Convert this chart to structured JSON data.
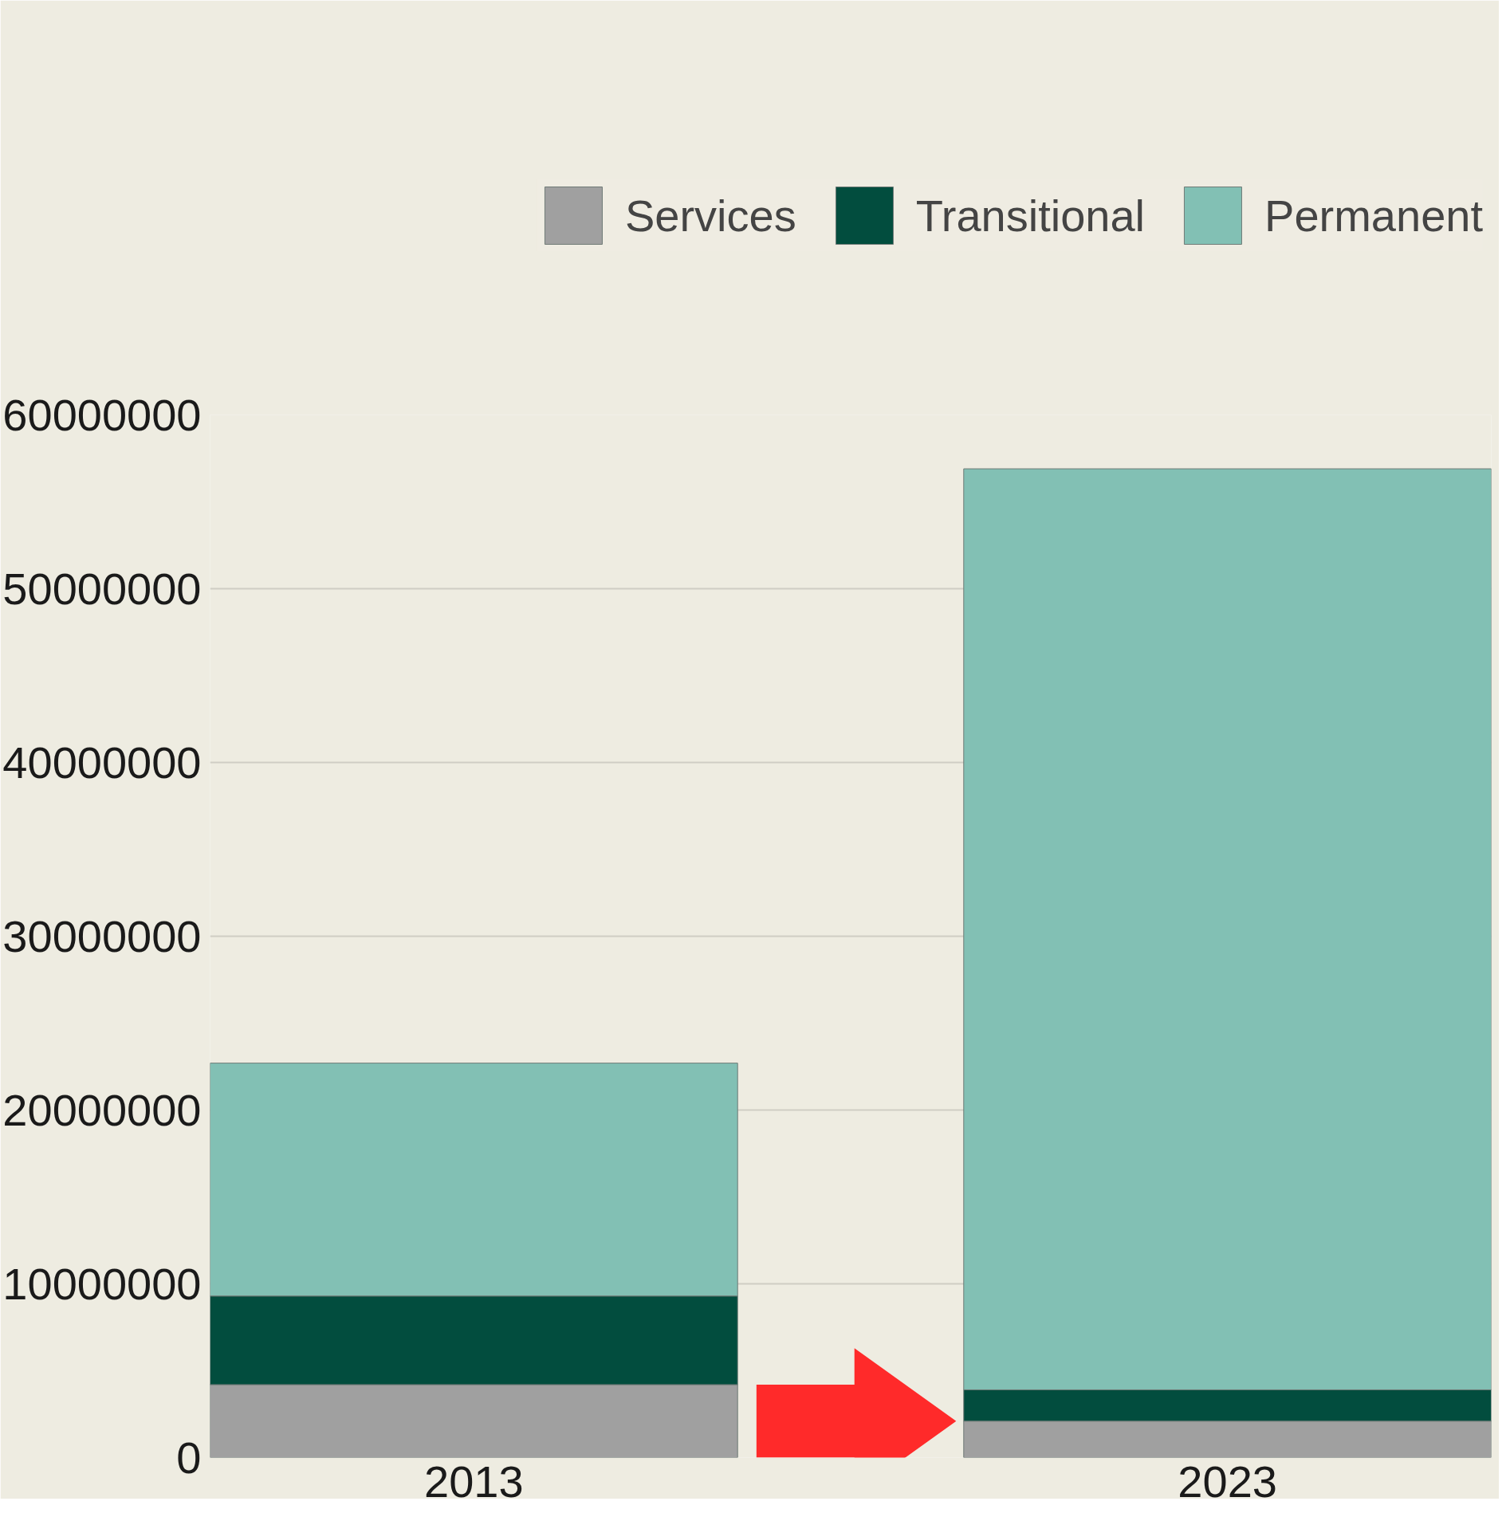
{
  "chart_data": {
    "type": "bar",
    "stacked": true,
    "categories": [
      "2013",
      "2023"
    ],
    "series": [
      {
        "name": "Services",
        "color": "#a0a0a0",
        "values": [
          4200000,
          2100000
        ]
      },
      {
        "name": "Transitional",
        "color": "#024d3e",
        "values": [
          5100000,
          1800000
        ]
      },
      {
        "name": "Permanent",
        "color": "#82c0b4",
        "values": [
          13400000,
          53000000
        ]
      }
    ],
    "ylim": [
      0,
      60000000
    ],
    "yticks": [
      0,
      10000000,
      20000000,
      30000000,
      40000000,
      50000000,
      60000000
    ],
    "grid": "y",
    "legend": "top"
  }
}
